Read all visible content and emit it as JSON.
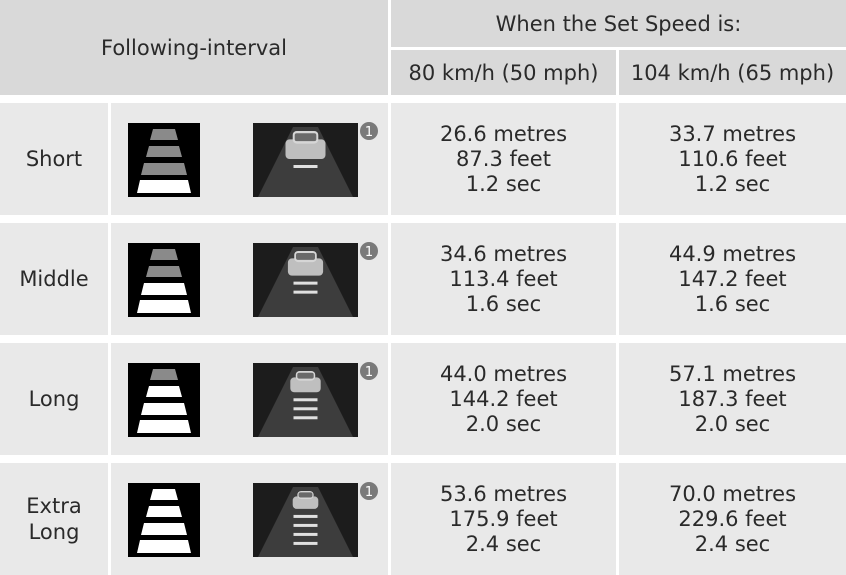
{
  "header": {
    "following_interval": "Following-interval",
    "set_speed": "When the Set Speed is:",
    "speed_80": "80 km/h (50 mph)",
    "speed_104": "104 km/h (65 mph)"
  },
  "table": {
    "rows": [
      {
        "label": "Short",
        "badge": "1",
        "speed_80": [
          "26.6 metres",
          "87.3 feet",
          "1.2 sec"
        ],
        "speed_104": [
          "33.7 metres",
          "110.6 feet",
          "1.2 sec"
        ]
      },
      {
        "label": "Middle",
        "badge": "1",
        "speed_80": [
          "34.6 metres",
          "113.4 feet",
          "1.6 sec"
        ],
        "speed_104": [
          "44.9 metres",
          "147.2 feet",
          "1.6 sec"
        ]
      },
      {
        "label": "Long",
        "badge": "1",
        "speed_80": [
          "44.0 metres",
          "144.2 feet",
          "2.0 sec"
        ],
        "speed_104": [
          "57.1 metres",
          "187.3 feet",
          "2.0 sec"
        ]
      },
      {
        "label": "Extra Long",
        "badge": "1",
        "speed_80": [
          "53.6 metres",
          "175.9 feet",
          "2.4 sec"
        ],
        "speed_104": [
          "70.0 metres",
          "229.6 feet",
          "2.4 sec"
        ]
      }
    ]
  }
}
